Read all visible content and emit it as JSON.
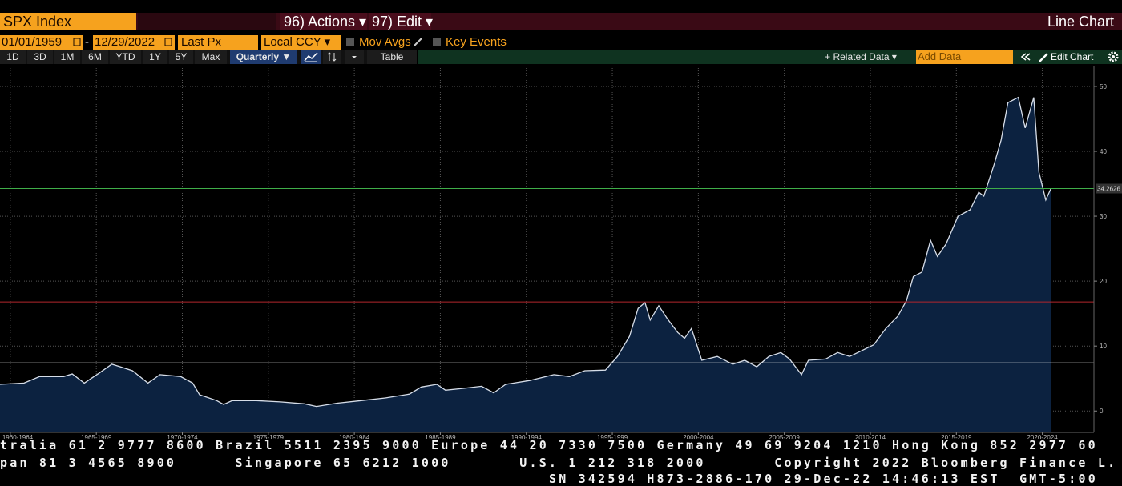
{
  "toolbar": {
    "ticker": "SPX Index",
    "actions": "96) Actions ▾",
    "edit": "97) Edit ▾",
    "view": "Line Chart"
  },
  "controls": {
    "start_date": "01/01/1959",
    "date_separator": "-",
    "end_date": "12/29/2022",
    "field": "Last Px",
    "currency": "Local CCY ▾",
    "mov_avgs": "Mov Avgs",
    "key_events": "Key Events"
  },
  "periods": [
    "1D",
    "3D",
    "1M",
    "6M",
    "YTD",
    "1Y",
    "5Y",
    "Max"
  ],
  "frequency": "Quarterly ▼",
  "table": "Table",
  "related_data": "+ Related Data ▾",
  "add_data": "Add Data",
  "edit_chart": "Edit Chart",
  "chart_data": {
    "type": "area",
    "color": "#d6dde8",
    "fill": "#0c2240",
    "x": [
      1961.9,
      1963.3,
      1964.2,
      1965.6,
      1966.1,
      1966.8,
      1967.7,
      1968.4,
      1968.9,
      1969.6,
      1970.5,
      1971.2,
      1972.4,
      1973.1,
      1973.5,
      1974.5,
      1974.9,
      1975.4,
      1976.8,
      1978.2,
      1979.6,
      1980.3,
      1981.5,
      1982.9,
      1984.3,
      1985.7,
      1986.4,
      1987.3,
      1987.8,
      1988.9,
      1989.9,
      1990.6,
      1991.3,
      1992.7,
      1994.1,
      1995.0,
      1995.9,
      1997.1,
      1997.8,
      1998.5,
      1999.0,
      1999.4,
      1999.7,
      2000.2,
      2000.7,
      2001.3,
      2001.7,
      2002.1,
      2002.7,
      2003.6,
      2004.5,
      2005.2,
      2005.9,
      2006.6,
      2007.3,
      2007.8,
      2008.5,
      2008.9,
      2009.9,
      2010.6,
      2011.3,
      2012.0,
      2012.7,
      2013.4,
      2014.1,
      2014.6,
      2015.0,
      2015.5,
      2016.0,
      2016.4,
      2016.9,
      2017.6,
      2018.3,
      2018.8,
      2019.1,
      2019.7,
      2020.1,
      2020.5,
      2021.1,
      2021.5,
      2022.0,
      2022.3,
      2022.7,
      2023.0
    ],
    "values": [
      4.1,
      4.3,
      5.3,
      5.3,
      5.7,
      4.3,
      5.9,
      7.2,
      6.8,
      6.2,
      4.3,
      5.6,
      5.3,
      4.3,
      2.5,
      1.6,
      1.0,
      1.6,
      1.6,
      1.4,
      1.1,
      0.7,
      1.2,
      1.6,
      2.0,
      2.6,
      3.7,
      4.1,
      3.2,
      3.5,
      3.8,
      2.8,
      4.1,
      4.7,
      5.6,
      5.3,
      6.2,
      6.3,
      8.4,
      11.5,
      15.8,
      16.7,
      14.0,
      16.2,
      14.2,
      12.1,
      11.2,
      12.7,
      7.8,
      8.4,
      7.2,
      7.8,
      6.8,
      8.4,
      9.0,
      8.0,
      5.6,
      7.8,
      8.0,
      9.0,
      8.4,
      9.3,
      10.2,
      12.7,
      14.6,
      17.0,
      20.7,
      21.4,
      26.3,
      23.8,
      25.7,
      30.0,
      31.0,
      33.7,
      33.1,
      38.0,
      41.7,
      47.5,
      48.3,
      43.6,
      48.3,
      36.8,
      32.5,
      34.2626
    ],
    "xlim": [
      1961.9,
      2025.5
    ],
    "xticks": [
      {
        "value": 1962.5,
        "label": "1960-1964"
      },
      {
        "value": 1967.5,
        "label": "1965-1969"
      },
      {
        "value": 1972.5,
        "label": "1970-1974"
      },
      {
        "value": 1977.5,
        "label": "1975-1979"
      },
      {
        "value": 1982.5,
        "label": "1980-1984"
      },
      {
        "value": 1987.5,
        "label": "1985-1989"
      },
      {
        "value": 1992.5,
        "label": "1990-1994"
      },
      {
        "value": 1997.5,
        "label": "1995-1999"
      },
      {
        "value": 2002.5,
        "label": "2000-2004"
      },
      {
        "value": 2007.5,
        "label": "2005-2009"
      },
      {
        "value": 2012.5,
        "label": "2010-2014"
      },
      {
        "value": 2017.5,
        "label": "2015-2019"
      },
      {
        "value": 2022.5,
        "label": "2020-2024"
      }
    ],
    "ylim": [
      -3.3,
      53.2
    ],
    "yticks": [
      0,
      10,
      20,
      30,
      40,
      50
    ],
    "grid": true,
    "reference_lines": [
      {
        "value": 34.2626,
        "color": "#3fae49",
        "label": "34.2626"
      },
      {
        "value": 16.8,
        "color": "#b3262d"
      },
      {
        "value": 7.4,
        "color": "#e8e8e8"
      }
    ]
  },
  "footer": [
    "tralia 61 2 9777 8600 Brazil 5511 2395 9000 Europe 44 20 7330 7500 Germany 49 69 9204 1210 Hong Kong 852 2977 60",
    "pan 81 3 4565 8900      Singapore 65 6212 1000       U.S. 1 212 318 2000       Copyright 2022 Bloomberg Finance L.",
    "SN 342594 H873-2886-170 29-Dec-22 14:46:13 EST  GMT-5:00"
  ]
}
